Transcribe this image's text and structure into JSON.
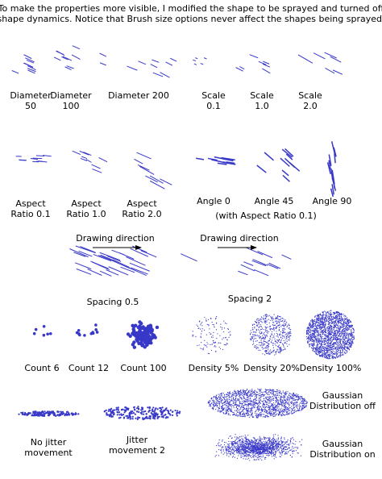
{
  "intro": [
    "To make the properties more visible, I modified the shape to be sprayed and turned off",
    "shape dynamics. Notice that Brush size options never affect the shapes being sprayed."
  ],
  "labels": [
    {
      "lines": [
        "Diameter",
        "50"
      ]
    },
    {
      "lines": [
        "Diameter",
        "100"
      ]
    },
    {
      "lines": [
        "Diameter 200"
      ]
    },
    {
      "lines": [
        "Scale",
        "0.1"
      ]
    },
    {
      "lines": [
        "Scale",
        "1.0"
      ]
    },
    {
      "lines": [
        "Scale",
        "2.0"
      ]
    },
    {
      "lines": [
        "Aspect",
        "Ratio 0.1"
      ]
    },
    {
      "lines": [
        "Aspect",
        "Ratio 1.0"
      ]
    },
    {
      "lines": [
        "Aspect",
        "Ratio 2.0"
      ]
    },
    {
      "lines": [
        "Angle 0"
      ]
    },
    {
      "lines": [
        "Angle 45"
      ]
    },
    {
      "lines": [
        "Angle 90"
      ]
    },
    {
      "lines": [
        "(with Aspect Ratio 0.1)"
      ]
    },
    {
      "lines": [
        "Drawing direction"
      ]
    },
    {
      "lines": [
        "Drawing direction"
      ]
    },
    {
      "lines": [
        "Spacing 0.5"
      ]
    },
    {
      "lines": [
        "Spacing 2"
      ]
    },
    {
      "lines": [
        "Count 6"
      ]
    },
    {
      "lines": [
        "Count 12"
      ]
    },
    {
      "lines": [
        "Count 100"
      ]
    },
    {
      "lines": [
        "Density 5%"
      ]
    },
    {
      "lines": [
        "Density 20%"
      ]
    },
    {
      "lines": [
        "Density 100%"
      ]
    },
    {
      "lines": [
        "No jitter",
        "movement"
      ]
    },
    {
      "lines": [
        "Jitter",
        "movement 2"
      ]
    },
    {
      "lines": [
        "Gaussian",
        "Distribution off"
      ]
    },
    {
      "lines": [
        "Gaussian",
        "Distribution on"
      ]
    }
  ]
}
